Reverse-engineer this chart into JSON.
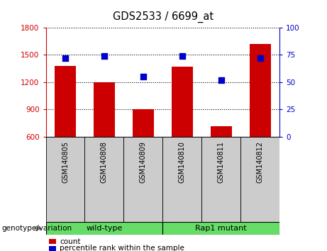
{
  "title": "GDS2533 / 6699_at",
  "samples": [
    "GSM140805",
    "GSM140808",
    "GSM140809",
    "GSM140810",
    "GSM140811",
    "GSM140812"
  ],
  "counts": [
    1380,
    1200,
    900,
    1370,
    720,
    1620
  ],
  "percentiles": [
    72,
    74,
    55,
    74,
    52,
    72
  ],
  "ylim_left": [
    600,
    1800
  ],
  "ylim_right": [
    0,
    100
  ],
  "yticks_left": [
    600,
    900,
    1200,
    1500,
    1800
  ],
  "yticks_right": [
    0,
    25,
    50,
    75,
    100
  ],
  "group_labels": [
    "wild-type",
    "Rap1 mutant"
  ],
  "group_ranges": [
    [
      0,
      3
    ],
    [
      3,
      6
    ]
  ],
  "group_color": "#66DD66",
  "group_label_text": "genotype/variation",
  "bar_color": "#CC0000",
  "dot_color": "#0000CC",
  "bar_bottom": 600,
  "cell_bg_color": "#CCCCCC",
  "legend_count_label": "count",
  "legend_percentile_label": "percentile rank within the sample"
}
